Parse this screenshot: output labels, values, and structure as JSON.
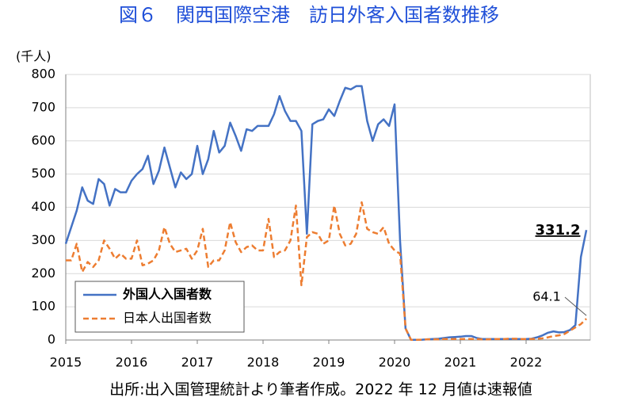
{
  "chart_data": {
    "type": "line",
    "title": "図６　関西国際空港　訪日外客入国者数推移",
    "y_label": "(千人)",
    "source": "出所:出入国管理統計より筆者作成。2022 年 12 月値は速報値",
    "categories": [
      "2015",
      null,
      null,
      null,
      null,
      null,
      null,
      null,
      null,
      null,
      null,
      null,
      "2016",
      null,
      null,
      null,
      null,
      null,
      null,
      null,
      null,
      null,
      null,
      null,
      "2017",
      null,
      null,
      null,
      null,
      null,
      null,
      null,
      null,
      null,
      null,
      null,
      "2018",
      null,
      null,
      null,
      null,
      null,
      null,
      null,
      null,
      null,
      null,
      null,
      "2019",
      null,
      null,
      null,
      null,
      null,
      null,
      null,
      null,
      null,
      null,
      null,
      "2020",
      null,
      null,
      null,
      null,
      null,
      null,
      null,
      null,
      null,
      null,
      null,
      "2021",
      null,
      null,
      null,
      null,
      null,
      null,
      null,
      null,
      null,
      null,
      null,
      "2022",
      null,
      null,
      null,
      null,
      null,
      null,
      null,
      null,
      null,
      null,
      null
    ],
    "series": [
      {
        "name": "外国人入国者数",
        "color": "#4472c4",
        "dashed": false,
        "bold_name": true,
        "values": [
          290,
          340,
          390,
          460,
          420,
          410,
          485,
          470,
          405,
          455,
          445,
          445,
          480,
          500,
          515,
          555,
          470,
          510,
          580,
          520,
          460,
          505,
          485,
          500,
          585,
          500,
          545,
          630,
          565,
          585,
          655,
          615,
          570,
          635,
          630,
          645,
          645,
          645,
          680,
          735,
          690,
          660,
          660,
          630,
          320,
          650,
          660,
          665,
          695,
          675,
          720,
          760,
          755,
          765,
          765,
          660,
          600,
          650,
          665,
          645,
          710,
          300,
          35,
          0.5,
          0.6,
          1,
          2,
          3,
          4,
          6,
          8,
          9,
          10,
          12,
          12,
          6,
          3,
          3,
          3,
          3,
          3,
          3,
          3,
          3,
          3,
          4,
          8,
          14,
          22,
          26,
          23,
          24,
          30,
          45,
          250,
          331.2
        ]
      },
      {
        "name": "日本人出国者数",
        "color": "#ed7d31",
        "dashed": true,
        "bold_name": false,
        "values": [
          240,
          240,
          290,
          205,
          235,
          220,
          240,
          300,
          275,
          245,
          260,
          245,
          245,
          300,
          225,
          230,
          240,
          270,
          340,
          290,
          265,
          270,
          275,
          245,
          270,
          335,
          220,
          240,
          240,
          270,
          355,
          295,
          265,
          280,
          285,
          270,
          270,
          365,
          250,
          265,
          270,
          300,
          405,
          165,
          310,
          325,
          320,
          290,
          300,
          405,
          320,
          285,
          290,
          320,
          415,
          335,
          325,
          320,
          340,
          290,
          270,
          260,
          35,
          0.5,
          0.5,
          1,
          2,
          2,
          2,
          3,
          3,
          3,
          3,
          3,
          3,
          3,
          2,
          2,
          3,
          3,
          3,
          4,
          4,
          3,
          3,
          3,
          4,
          5,
          8,
          12,
          14,
          18,
          28,
          38,
          48,
          64.1
        ]
      }
    ],
    "ylim": [
      0,
      800
    ],
    "yticks": [
      0,
      100,
      200,
      300,
      400,
      500,
      600,
      700,
      800
    ],
    "grid": true,
    "legend": "bottom-left"
  }
}
